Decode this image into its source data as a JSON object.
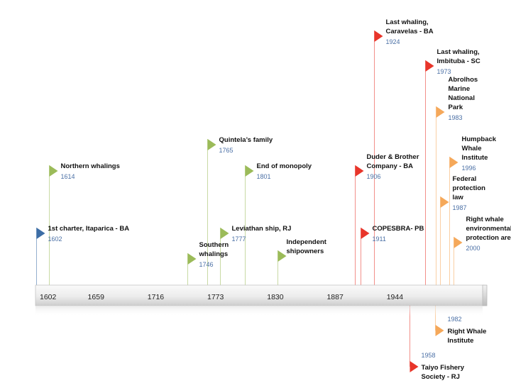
{
  "axis": {
    "start_year": 1602,
    "end_year": 2010,
    "ticks": [
      "1602",
      "1659",
      "1716",
      "1773",
      "1830",
      "1887",
      "1944"
    ]
  },
  "colors": {
    "blue": "#3d6ea6",
    "green": "#9bbb59",
    "red": "#e8352a",
    "orange": "#f5a85a",
    "bar_light": "#f4f4f4",
    "bar_dark": "#cfcfcf"
  },
  "events": [
    {
      "year": 1602,
      "year_label": "1602",
      "title_lines": [
        "1st charter, Itaparica - BA"
      ],
      "color": "blue"
    },
    {
      "year": 1614,
      "year_label": "1614",
      "title_lines": [
        "Northern whalings"
      ],
      "color": "green"
    },
    {
      "year": 1746,
      "year_label": "1746",
      "title_lines": [
        "Southern",
        "whalings"
      ],
      "color": "green"
    },
    {
      "year": 1765,
      "year_label": "1765",
      "title_lines": [
        "Quintela’s family"
      ],
      "color": "green"
    },
    {
      "year": 1777,
      "year_label": "1777",
      "title_lines": [
        "Leviathan ship, RJ"
      ],
      "color": "green"
    },
    {
      "year": 1801,
      "year_label": "1801",
      "title_lines": [
        "End of monopoly"
      ],
      "color": "green"
    },
    {
      "year": 1832,
      "year_label": "",
      "title_lines": [
        "Independent",
        "shipowners"
      ],
      "color": "green"
    },
    {
      "year": 1906,
      "year_label": "1906",
      "title_lines": [
        "Duder & Brother",
        "Company - BA"
      ],
      "color": "red"
    },
    {
      "year": 1911,
      "year_label": "1911",
      "title_lines": [
        "COPESBRA- PB"
      ],
      "color": "red"
    },
    {
      "year": 1924,
      "year_label": "1924",
      "title_lines": [
        "Last whaling,",
        "Caravelas - BA"
      ],
      "color": "red"
    },
    {
      "year": 1958,
      "year_label": "1958",
      "title_lines": [
        "Taiyo Fishery",
        "Society - RJ"
      ],
      "color": "red",
      "below": true
    },
    {
      "year": 1973,
      "year_label": "1973",
      "title_lines": [
        "Last whaling,",
        "Imbituba - SC"
      ],
      "color": "red"
    },
    {
      "year": 1982,
      "year_label": "1982",
      "title_lines": [
        "Right Whale",
        "Institute"
      ],
      "color": "orange",
      "below": true
    },
    {
      "year": 1983,
      "year_label": "1983",
      "title_lines": [
        "Abrolhos",
        "Marine",
        "National",
        "Park"
      ],
      "color": "orange"
    },
    {
      "year": 1987,
      "year_label": "1987",
      "title_lines": [
        "Federal",
        "protection",
        "law"
      ],
      "color": "orange"
    },
    {
      "year": 1996,
      "year_label": "1996",
      "title_lines": [
        "Humpback",
        "Whale",
        "Institute"
      ],
      "color": "orange"
    },
    {
      "year": 2000,
      "year_label": "2000",
      "title_lines": [
        "Right whale",
        "environmental",
        "protection area"
      ],
      "color": "orange"
    }
  ]
}
